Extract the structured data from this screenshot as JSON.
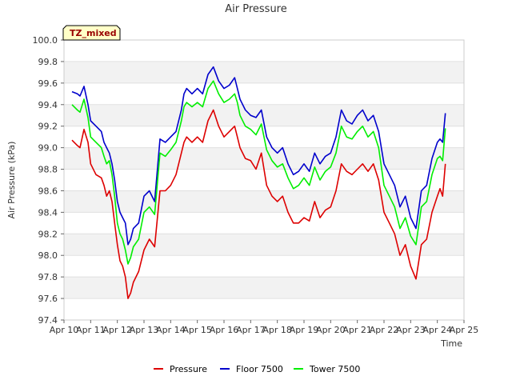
{
  "chart_data": {
    "type": "line",
    "title": "Air Pressure",
    "xlabel": "Time",
    "ylabel": "Air Pressure (kPa)",
    "annotation": "TZ_mixed",
    "ylim": [
      97.4,
      100.0
    ],
    "yticks": [
      "97.4",
      "97.6",
      "97.8",
      "98.0",
      "98.2",
      "98.4",
      "98.6",
      "98.8",
      "99.0",
      "99.2",
      "99.4",
      "99.6",
      "99.8",
      "100.0"
    ],
    "xlim": [
      0,
      15
    ],
    "xticks": [
      "Apr 10",
      "Apr 11",
      "Apr 12",
      "Apr 13",
      "Apr 14",
      "Apr 15",
      "Apr 16",
      "Apr 17",
      "Apr 18",
      "Apr 19",
      "Apr 20",
      "Apr 21",
      "Apr 22",
      "Apr 23",
      "Apr 24",
      "Apr 25"
    ],
    "grid": true,
    "legend_position": "bottom",
    "x": [
      0.3,
      0.5,
      0.6,
      0.75,
      0.9,
      1.0,
      1.2,
      1.4,
      1.5,
      1.6,
      1.7,
      1.8,
      1.9,
      2.0,
      2.1,
      2.2,
      2.3,
      2.4,
      2.5,
      2.6,
      2.8,
      3.0,
      3.2,
      3.4,
      3.6,
      3.8,
      4.0,
      4.2,
      4.4,
      4.5,
      4.6,
      4.8,
      5.0,
      5.2,
      5.4,
      5.6,
      5.8,
      6.0,
      6.2,
      6.4,
      6.5,
      6.6,
      6.8,
      7.0,
      7.2,
      7.4,
      7.6,
      7.8,
      8.0,
      8.2,
      8.4,
      8.6,
      8.8,
      9.0,
      9.2,
      9.4,
      9.6,
      9.8,
      10.0,
      10.2,
      10.4,
      10.6,
      10.8,
      11.0,
      11.2,
      11.4,
      11.6,
      11.8,
      12.0,
      12.2,
      12.4,
      12.6,
      12.8,
      13.0,
      13.2,
      13.4,
      13.6,
      13.8,
      14.0,
      14.1,
      14.2,
      14.3
    ],
    "series": [
      {
        "name": "Pressure",
        "color": "#dd0000",
        "values": [
          99.07,
          99.02,
          99.0,
          99.17,
          99.05,
          98.85,
          98.75,
          98.72,
          98.65,
          98.55,
          98.6,
          98.5,
          98.3,
          98.1,
          97.95,
          97.9,
          97.8,
          97.6,
          97.65,
          97.75,
          97.85,
          98.05,
          98.15,
          98.08,
          98.6,
          98.6,
          98.65,
          98.75,
          98.95,
          99.05,
          99.1,
          99.05,
          99.1,
          99.05,
          99.25,
          99.35,
          99.2,
          99.1,
          99.15,
          99.2,
          99.1,
          99.0,
          98.9,
          98.88,
          98.8,
          98.95,
          98.65,
          98.55,
          98.5,
          98.55,
          98.4,
          98.3,
          98.3,
          98.35,
          98.32,
          98.5,
          98.35,
          98.42,
          98.45,
          98.6,
          98.85,
          98.78,
          98.75,
          98.8,
          98.85,
          98.78,
          98.85,
          98.7,
          98.4,
          98.3,
          98.2,
          98.0,
          98.1,
          97.9,
          97.78,
          98.1,
          98.15,
          98.4,
          98.55,
          98.62,
          98.55,
          98.85
        ]
      },
      {
        "name": "Floor 7500",
        "color": "#0000cc",
        "values": [
          99.52,
          99.5,
          99.48,
          99.57,
          99.4,
          99.25,
          99.2,
          99.15,
          99.05,
          99.0,
          98.95,
          98.85,
          98.7,
          98.5,
          98.4,
          98.35,
          98.3,
          98.1,
          98.15,
          98.25,
          98.3,
          98.55,
          98.6,
          98.5,
          99.08,
          99.05,
          99.1,
          99.15,
          99.35,
          99.5,
          99.55,
          99.5,
          99.55,
          99.5,
          99.68,
          99.75,
          99.62,
          99.55,
          99.58,
          99.65,
          99.55,
          99.45,
          99.35,
          99.3,
          99.28,
          99.35,
          99.1,
          99.0,
          98.95,
          99.0,
          98.85,
          98.75,
          98.78,
          98.85,
          98.78,
          98.95,
          98.85,
          98.92,
          98.95,
          99.1,
          99.35,
          99.25,
          99.22,
          99.3,
          99.35,
          99.25,
          99.3,
          99.15,
          98.85,
          98.75,
          98.65,
          98.45,
          98.55,
          98.35,
          98.25,
          98.6,
          98.65,
          98.9,
          99.05,
          99.08,
          99.05,
          99.32
        ]
      },
      {
        "name": "Tower 7500",
        "color": "#00ee00",
        "values": [
          99.4,
          99.35,
          99.33,
          99.45,
          99.28,
          99.1,
          99.05,
          99.0,
          98.92,
          98.85,
          98.88,
          98.75,
          98.55,
          98.3,
          98.2,
          98.15,
          98.05,
          97.92,
          97.98,
          98.08,
          98.15,
          98.4,
          98.45,
          98.38,
          98.95,
          98.92,
          98.98,
          99.05,
          99.25,
          99.38,
          99.42,
          99.38,
          99.42,
          99.38,
          99.55,
          99.62,
          99.5,
          99.42,
          99.45,
          99.5,
          99.42,
          99.3,
          99.2,
          99.17,
          99.12,
          99.22,
          98.98,
          98.88,
          98.82,
          98.85,
          98.72,
          98.62,
          98.65,
          98.72,
          98.65,
          98.82,
          98.7,
          98.78,
          98.82,
          98.95,
          99.2,
          99.1,
          99.08,
          99.15,
          99.2,
          99.1,
          99.15,
          99.0,
          98.65,
          98.55,
          98.45,
          98.25,
          98.35,
          98.18,
          98.1,
          98.45,
          98.5,
          98.75,
          98.9,
          98.92,
          98.88,
          99.18
        ]
      }
    ]
  }
}
